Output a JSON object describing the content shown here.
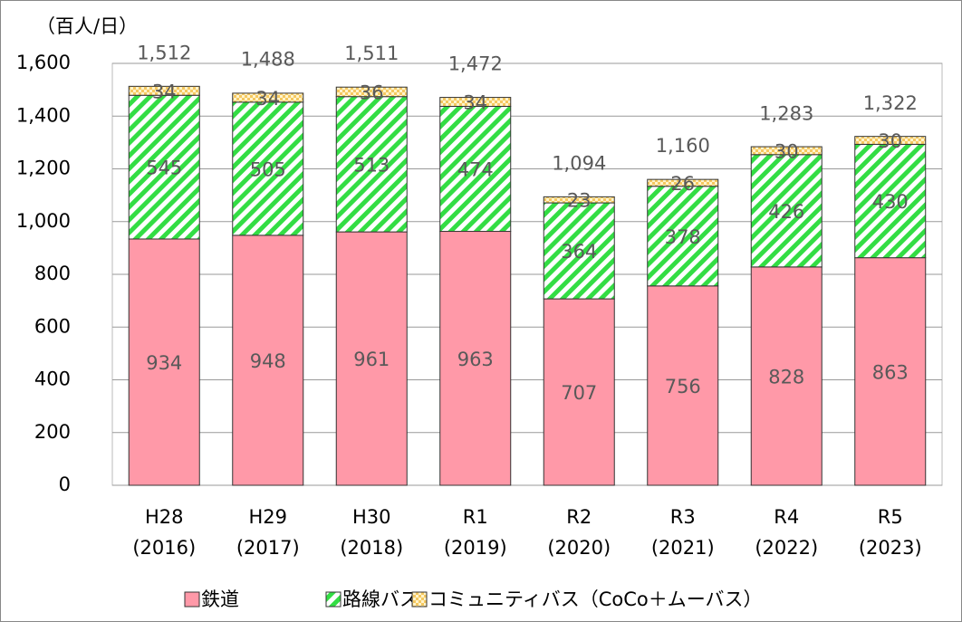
{
  "chart_data": {
    "type": "stacked_bar",
    "y_axis_label": "（百人/日）",
    "categories": [
      [
        "H28",
        "(2016)"
      ],
      [
        "H29",
        "(2017)"
      ],
      [
        "H30",
        "(2018)"
      ],
      [
        "R1",
        "(2019)"
      ],
      [
        "R2",
        "(2020)"
      ],
      [
        "R3",
        "(2021)"
      ],
      [
        "R4",
        "(2022)"
      ],
      [
        "R5",
        "(2023)"
      ]
    ],
    "series": [
      {
        "name": "鉄道",
        "color": "#ff99a8",
        "values": [
          934,
          948,
          961,
          963,
          707,
          756,
          828,
          863
        ]
      },
      {
        "name": "路線バス",
        "color": "#33dd44",
        "values": [
          545,
          505,
          513,
          474,
          364,
          378,
          426,
          430
        ]
      },
      {
        "name": "コミュニティバス（CoCo＋ムーバス）",
        "color": "#f5c860",
        "values": [
          34,
          34,
          36,
          34,
          23,
          26,
          30,
          30
        ]
      }
    ],
    "totals": {
      "values": [
        1512,
        1488,
        1511,
        1472,
        1094,
        1160,
        1283,
        1322
      ],
      "value_labels": [
        "1,512",
        "1,488",
        "1,511",
        "1,472",
        "1,094",
        "1,160",
        "1,283",
        "1,322"
      ]
    },
    "ylim": [
      0,
      1600
    ],
    "yticks": [
      0,
      200,
      400,
      600,
      800,
      {
        "value": 1000,
        "label": "1,000"
      },
      {
        "value": 1200,
        "label": "1,200"
      },
      {
        "value": 1400,
        "label": "1,400"
      },
      {
        "value": 1600,
        "label": "1,600"
      }
    ],
    "grid": true
  }
}
